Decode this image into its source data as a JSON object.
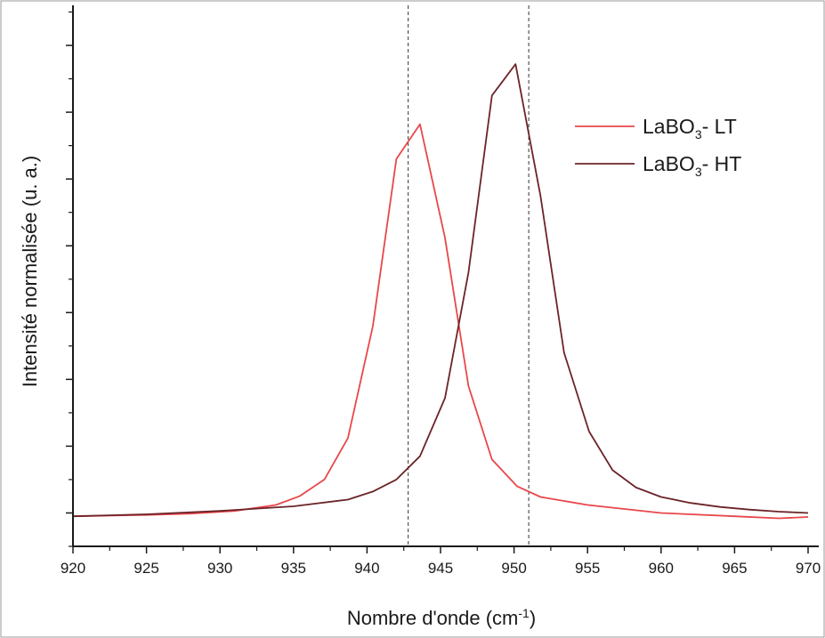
{
  "chart_data": {
    "type": "line",
    "xlabel": "Nombre d'onde (cm",
    "xlabel_sup": "-1",
    "xlabel_end": ")",
    "ylabel": "Intensité normalisée (u. a.)",
    "xlim": [
      920,
      970
    ],
    "ylim": [
      -0.5,
      7.6
    ],
    "x_ticks": [
      920,
      925,
      930,
      935,
      940,
      945,
      950,
      955,
      960,
      965,
      970
    ],
    "y_major_ticks": [
      -1,
      0,
      1,
      2,
      3,
      4,
      5,
      6,
      7
    ],
    "grid": false,
    "legend_position": "top-right",
    "reference_lines": [
      942.8,
      951.0
    ],
    "series": [
      {
        "name": "LaBO",
        "name_sub": "3",
        "name_suffix": "- LT",
        "color": "#e8474b",
        "x": [
          920,
          925,
          928,
          931,
          933.8,
          935.4,
          937.1,
          938.7,
          940.4,
          942,
          943.6,
          945.3,
          946.9,
          948.5,
          950.2,
          951.8,
          955,
          960,
          965,
          968,
          970
        ],
        "y": [
          -0.05,
          -0.03,
          -0.01,
          0.03,
          0.12,
          0.25,
          0.5,
          1.12,
          2.8,
          5.3,
          5.82,
          4.12,
          1.9,
          0.8,
          0.4,
          0.24,
          0.12,
          0.0,
          -0.05,
          -0.08,
          -0.06
        ]
      },
      {
        "name": "LaBO",
        "name_sub": "3",
        "name_suffix": "- HT",
        "color": "#6b2428",
        "x": [
          920,
          925,
          930,
          935,
          938.7,
          940.4,
          942,
          943.6,
          945.3,
          946.9,
          948.5,
          950.1,
          951.8,
          953.4,
          955.1,
          956.7,
          958.3,
          960,
          962,
          964,
          966,
          968,
          970
        ],
        "y": [
          -0.05,
          -0.02,
          0.03,
          0.1,
          0.2,
          0.32,
          0.5,
          0.85,
          1.72,
          3.6,
          6.25,
          6.72,
          4.75,
          2.4,
          1.22,
          0.64,
          0.38,
          0.24,
          0.15,
          0.09,
          0.05,
          0.02,
          0.0
        ]
      }
    ]
  }
}
